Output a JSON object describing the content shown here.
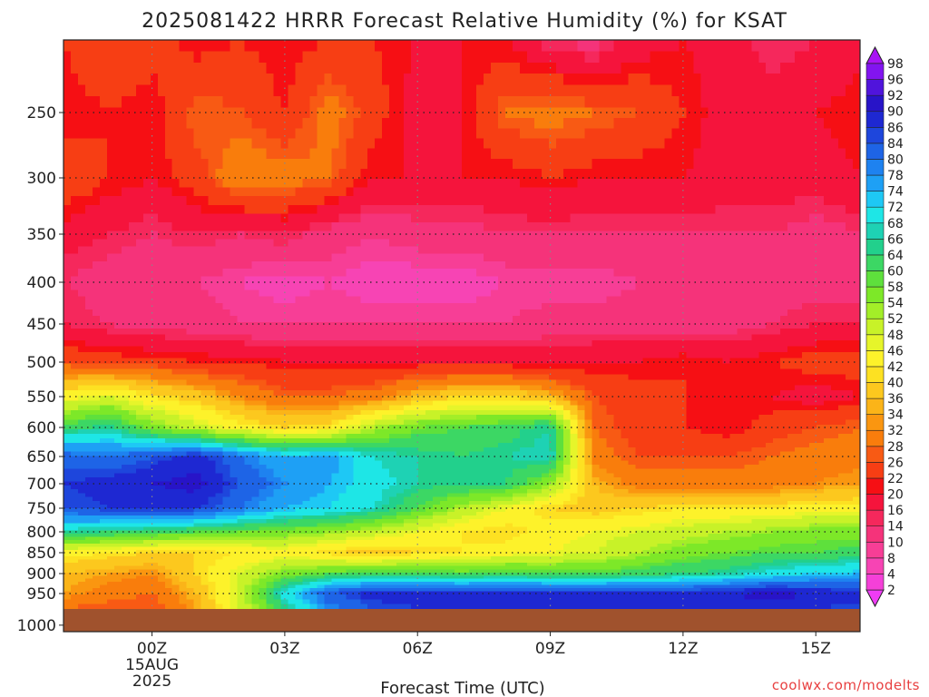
{
  "chart_data": {
    "type": "heatmap",
    "title": "2025081422 HRRR Forecast Relative Humidity (%) for KSAT",
    "xlabel": "Forecast Time (UTC)",
    "ylabel": "",
    "x_ticks": [
      {
        "hour": 0,
        "label": "00Z",
        "sub": [
          "15AUG",
          "2025"
        ]
      },
      {
        "hour": 3,
        "label": "03Z"
      },
      {
        "hour": 6,
        "label": "06Z"
      },
      {
        "hour": 9,
        "label": "09Z"
      },
      {
        "hour": 12,
        "label": "12Z"
      },
      {
        "hour": 15,
        "label": "15Z"
      }
    ],
    "xlim_hours": [
      -2,
      16
    ],
    "y_ticks": [
      250,
      300,
      350,
      400,
      450,
      500,
      550,
      600,
      650,
      700,
      750,
      800,
      850,
      900,
      950,
      1000
    ],
    "ylim_hpa": [
      200,
      1010
    ],
    "ground_top_hpa": 975,
    "grid": true,
    "x": [
      -2,
      -1,
      0,
      1,
      2,
      3,
      4,
      5,
      6,
      7,
      8,
      9,
      10,
      11,
      12,
      13,
      14,
      15,
      16
    ],
    "y": [
      200,
      250,
      300,
      350,
      400,
      450,
      500,
      550,
      600,
      650,
      700,
      750,
      800,
      850,
      900,
      950,
      975
    ],
    "rh": [
      [
        22,
        26,
        24,
        20,
        22,
        20,
        22,
        22,
        20,
        20,
        20,
        14,
        12,
        18,
        20,
        18,
        14,
        16,
        18
      ],
      [
        20,
        22,
        20,
        28,
        26,
        22,
        30,
        24,
        18,
        20,
        28,
        30,
        28,
        26,
        22,
        18,
        18,
        20,
        22
      ],
      [
        26,
        22,
        20,
        24,
        32,
        30,
        28,
        20,
        20,
        20,
        20,
        22,
        20,
        20,
        20,
        18,
        18,
        18,
        20
      ],
      [
        18,
        16,
        14,
        16,
        14,
        16,
        12,
        10,
        12,
        12,
        14,
        14,
        14,
        14,
        14,
        14,
        14,
        12,
        14
      ],
      [
        14,
        12,
        10,
        10,
        8,
        6,
        8,
        6,
        6,
        6,
        8,
        8,
        8,
        10,
        10,
        10,
        12,
        12,
        12
      ],
      [
        16,
        14,
        12,
        12,
        10,
        10,
        10,
        10,
        10,
        10,
        10,
        12,
        12,
        12,
        12,
        12,
        14,
        16,
        16
      ],
      [
        26,
        24,
        24,
        22,
        22,
        20,
        20,
        20,
        20,
        20,
        20,
        18,
        20,
        20,
        22,
        20,
        22,
        24,
        24
      ],
      [
        44,
        48,
        42,
        38,
        32,
        28,
        28,
        30,
        36,
        40,
        40,
        36,
        26,
        24,
        22,
        20,
        20,
        18,
        20
      ],
      [
        62,
        66,
        56,
        50,
        44,
        40,
        42,
        52,
        58,
        60,
        62,
        66,
        28,
        24,
        22,
        20,
        24,
        26,
        28
      ],
      [
        82,
        80,
        84,
        88,
        80,
        74,
        76,
        68,
        66,
        64,
        66,
        68,
        30,
        26,
        26,
        26,
        28,
        30,
        30
      ],
      [
        86,
        88,
        90,
        92,
        84,
        78,
        74,
        70,
        66,
        64,
        64,
        54,
        36,
        30,
        30,
        30,
        30,
        32,
        34
      ],
      [
        84,
        86,
        88,
        86,
        80,
        74,
        72,
        68,
        60,
        52,
        46,
        40,
        38,
        40,
        42,
        42,
        42,
        44,
        44
      ],
      [
        66,
        64,
        62,
        60,
        58,
        56,
        54,
        50,
        46,
        42,
        40,
        44,
        46,
        48,
        50,
        52,
        54,
        56,
        56
      ],
      [
        44,
        42,
        40,
        40,
        42,
        44,
        40,
        38,
        40,
        42,
        44,
        46,
        48,
        52,
        56,
        58,
        60,
        60,
        62
      ],
      [
        36,
        34,
        32,
        40,
        48,
        56,
        60,
        62,
        62,
        60,
        62,
        60,
        60,
        62,
        64,
        66,
        70,
        72,
        74
      ],
      [
        34,
        30,
        28,
        36,
        50,
        70,
        84,
        88,
        88,
        88,
        88,
        88,
        88,
        88,
        88,
        90,
        92,
        90,
        88
      ],
      [
        28,
        26,
        26,
        34,
        48,
        64,
        78,
        84,
        86,
        86,
        86,
        86,
        86,
        86,
        86,
        86,
        88,
        86,
        84
      ]
    ],
    "colorbar": {
      "levels": [
        2,
        4,
        8,
        10,
        14,
        16,
        20,
        22,
        26,
        28,
        32,
        34,
        36,
        40,
        42,
        46,
        48,
        52,
        54,
        58,
        60,
        64,
        66,
        68,
        72,
        74,
        78,
        80,
        84,
        86,
        90,
        92,
        96,
        98
      ],
      "colors": [
        "#ef3cf5",
        "#f540d8",
        "#f744b4",
        "#f73e96",
        "#f5337a",
        "#f5285c",
        "#f5143c",
        "#f60f14",
        "#f73e14",
        "#f85a14",
        "#f97d0c",
        "#fa9610",
        "#fbb418",
        "#fcc81e",
        "#fde122",
        "#fdf22a",
        "#e6f52a",
        "#c8f228",
        "#a3ee28",
        "#7de828",
        "#5ee03c",
        "#3cd764",
        "#22d08c",
        "#1ed2b4",
        "#1ee6e6",
        "#1ec8f5",
        "#1ea0f5",
        "#1e82f0",
        "#1e64e6",
        "#1e46dc",
        "#1e28d2",
        "#2814c8",
        "#5014dc",
        "#8214f0",
        "#a814f5"
      ]
    }
  },
  "credit": "coolwx.com/modelts"
}
